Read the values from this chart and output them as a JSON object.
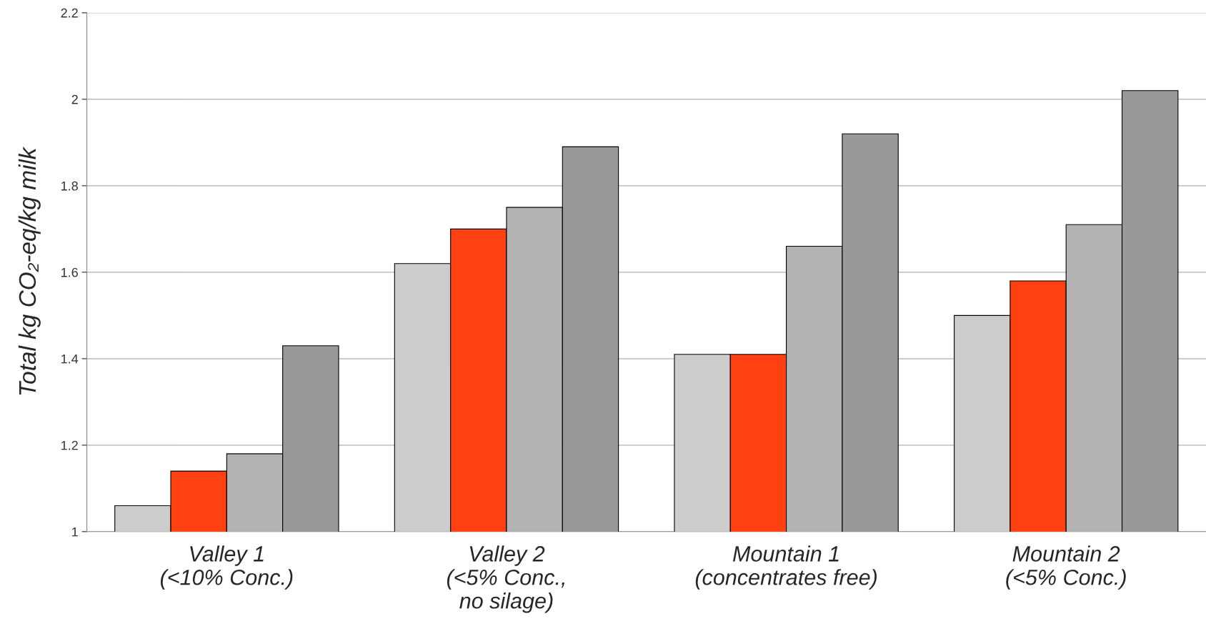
{
  "chart_data": {
    "type": "bar",
    "ylabel": "Total kg CO₂-eq/kg milk",
    "categories": [
      "Valley 1\n(<10% Conc.)",
      "Valley 2\n(<5% Conc.,\nno silage)",
      "Mountain 1\n(concentrates free)",
      "Mountain 2\n(<5% Conc.)"
    ],
    "series": [
      {
        "color": "#cccccc",
        "values": [
          1.06,
          1.62,
          1.41,
          1.5
        ]
      },
      {
        "color": "#ff4010",
        "values": [
          1.14,
          1.7,
          1.41,
          1.58
        ]
      },
      {
        "color": "#b3b3b3",
        "values": [
          1.18,
          1.75,
          1.66,
          1.71
        ]
      },
      {
        "color": "#999999",
        "values": [
          1.43,
          1.89,
          1.92,
          2.02
        ]
      }
    ],
    "ylim": [
      1,
      2.2
    ],
    "yticks": [
      1,
      1.2,
      1.4,
      1.6,
      1.8,
      2,
      2.2
    ],
    "grid": "y"
  }
}
